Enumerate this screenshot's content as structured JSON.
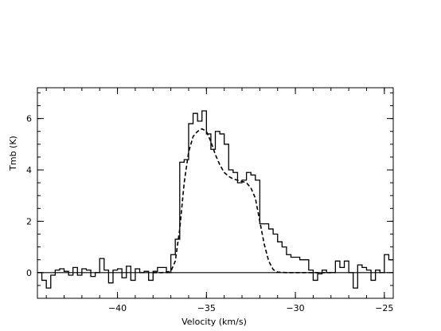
{
  "chart_data": {
    "type": "line",
    "title": "",
    "xlabel": "Velocity (km/s)",
    "ylabel": "Tmb (K)",
    "xlim": [
      -44.5,
      -24.5
    ],
    "ylim": [
      -1.0,
      7.2
    ],
    "xticks": [
      -40,
      -35,
      -30,
      -25
    ],
    "xtick_labels": [
      "−40",
      "−35",
      "−30",
      "−25"
    ],
    "yticks": [
      0,
      2,
      4,
      6
    ],
    "ytick_labels": [
      "0",
      "2",
      "4",
      "6"
    ],
    "grid": false,
    "baseline": 0,
    "series": [
      {
        "style": "histogram",
        "x": [
          -44.5,
          -44.25,
          -44.0,
          -43.75,
          -43.5,
          -43.25,
          -43.0,
          -42.75,
          -42.5,
          -42.25,
          -42.0,
          -41.75,
          -41.5,
          -41.25,
          -41.0,
          -40.75,
          -40.5,
          -40.25,
          -40.0,
          -39.75,
          -39.5,
          -39.25,
          -39.0,
          -38.75,
          -38.5,
          -38.25,
          -38.0,
          -37.75,
          -37.5,
          -37.25,
          -37.0,
          -36.75,
          -36.5,
          -36.25,
          -36.0,
          -35.75,
          -35.5,
          -35.25,
          -35.0,
          -34.75,
          -34.5,
          -34.25,
          -34.0,
          -33.75,
          -33.5,
          -33.25,
          -33.0,
          -32.75,
          -32.5,
          -32.25,
          -32.0,
          -31.75,
          -31.5,
          -31.25,
          -31.0,
          -30.75,
          -30.5,
          -30.25,
          -30.0,
          -29.75,
          -29.5,
          -29.25,
          -29.0,
          -28.75,
          -28.5,
          -28.25,
          -28.0,
          -27.75,
          -27.5,
          -27.25,
          -27.0,
          -26.75,
          -26.5,
          -26.25,
          -26.0,
          -25.75,
          -25.5,
          -25.25,
          -25.0,
          -24.75
        ],
        "y": [
          0.0,
          -0.3,
          -0.6,
          -0.1,
          0.1,
          0.15,
          0.05,
          -0.1,
          0.2,
          -0.1,
          0.15,
          0.1,
          -0.15,
          0.0,
          0.55,
          0.1,
          -0.4,
          0.1,
          0.15,
          -0.2,
          0.25,
          -0.3,
          0.15,
          0.0,
          0.05,
          -0.3,
          0.05,
          0.2,
          0.2,
          0.0,
          0.7,
          1.3,
          4.3,
          4.4,
          5.8,
          6.2,
          5.9,
          6.3,
          5.4,
          4.8,
          5.5,
          5.4,
          5.0,
          4.0,
          3.9,
          3.5,
          3.6,
          3.9,
          3.8,
          3.6,
          1.9,
          1.9,
          1.7,
          1.5,
          1.2,
          1.0,
          0.7,
          0.6,
          0.6,
          0.5,
          0.5,
          0.1,
          -0.3,
          -0.05,
          0.1,
          0.0,
          0.0,
          0.45,
          0.2,
          0.45,
          0.0,
          -0.6,
          0.3,
          0.2,
          0.1,
          -0.3,
          0.1,
          0.0,
          0.7,
          0.5
        ]
      },
      {
        "style": "dashed",
        "x": [
          -38.0,
          -37.5,
          -37.0,
          -36.75,
          -36.5,
          -36.25,
          -36.0,
          -35.75,
          -35.5,
          -35.25,
          -35.0,
          -34.75,
          -34.5,
          -34.25,
          -34.0,
          -33.75,
          -33.5,
          -33.25,
          -33.0,
          -32.75,
          -32.5,
          -32.25,
          -32.0,
          -31.75,
          -31.5,
          -31.25,
          -31.0,
          -30.5,
          -30.0,
          -29.0,
          -28.0
        ],
        "y": [
          0.0,
          0.0,
          0.05,
          0.45,
          1.7,
          3.5,
          4.7,
          5.3,
          5.5,
          5.6,
          5.5,
          5.1,
          4.6,
          4.2,
          3.9,
          3.75,
          3.65,
          3.6,
          3.55,
          3.5,
          3.3,
          2.9,
          2.0,
          1.1,
          0.45,
          0.12,
          0.02,
          0.0,
          0.0,
          0.0,
          0.0
        ]
      }
    ]
  }
}
